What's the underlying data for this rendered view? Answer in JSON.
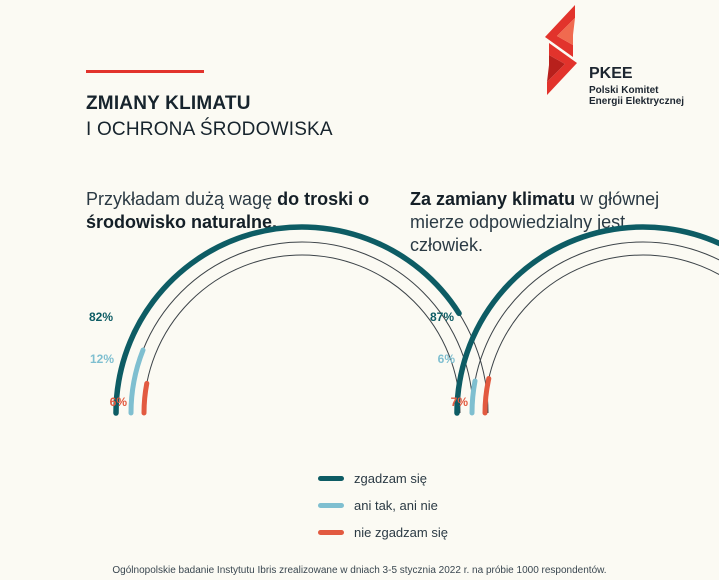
{
  "header": {
    "title_bold": "ZMIANY KLIMATU",
    "title_light": "I OCHRONA ŚRODOWISKA",
    "logo_name": "PKEE",
    "logo_subtitle_1": "Polski Komitet",
    "logo_subtitle_2": "Energii Elektrycznej"
  },
  "colors": {
    "agree": "#0d5c64",
    "neutral": "#7fbfd0",
    "disagree": "#e25a40",
    "accent_red": "#e2332c"
  },
  "questions": [
    {
      "part1": "Przykładam dużą wagę ",
      "bold": "do troski o środowisko naturalne.",
      "part2": ""
    },
    {
      "part1": "",
      "bold": "Za zamiany klimatu",
      "part2": " w głównej mierze odpowiedzialny jest człowiek."
    }
  ],
  "chart_data": [
    {
      "type": "pie",
      "categories": [
        "zgadzam się",
        "ani tak, ani nie",
        "nie zgadzam się"
      ],
      "values": [
        82,
        12,
        6
      ],
      "labels": [
        "82%",
        "12%",
        "6%"
      ]
    },
    {
      "type": "pie",
      "categories": [
        "zgadzam się",
        "ani tak, ani nie",
        "nie zgadzam się"
      ],
      "values": [
        87,
        6,
        7
      ],
      "labels": [
        "87%",
        "6%",
        "7%"
      ]
    }
  ],
  "legend": [
    {
      "label": "zgadzam się",
      "color": "#0d5c64"
    },
    {
      "label": "ani tak, ani nie",
      "color": "#7fbfd0"
    },
    {
      "label": "nie zgadzam się",
      "color": "#e25a40"
    }
  ],
  "footnote": "Ogólnopolskie badanie Instytutu Ibris zrealizowane w dniach 3-5 stycznia 2022 r. na próbie 1000 respondentów."
}
